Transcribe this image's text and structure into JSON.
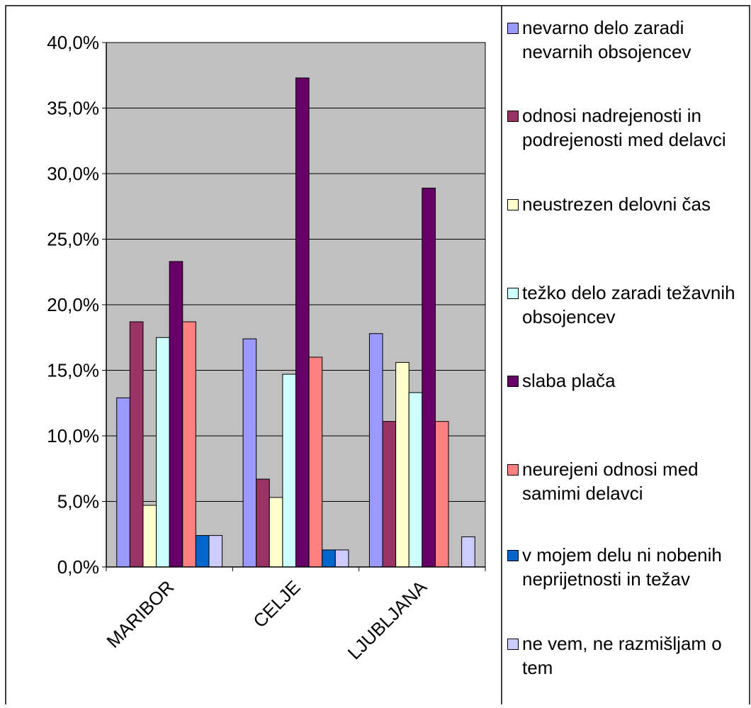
{
  "chart_data": {
    "type": "bar",
    "categories": [
      "MARIBOR",
      "CELJE",
      "LJUBLJANA"
    ],
    "series": [
      {
        "name": "nevarno delo zaradi nevarnih obsojencev",
        "color": "#9999ff",
        "values": [
          12.9,
          17.4,
          17.8
        ]
      },
      {
        "name": "odnosi nadrejenosti in podrejenosti med delavci",
        "color": "#993366",
        "values": [
          18.7,
          6.7,
          11.1
        ]
      },
      {
        "name": "neustrezen delovni čas",
        "color": "#ffffcc",
        "values": [
          4.7,
          5.3,
          15.6
        ]
      },
      {
        "name": "težko delo zaradi težavnih obsojencev",
        "color": "#ccffff",
        "values": [
          17.5,
          14.7,
          13.3
        ]
      },
      {
        "name": "slaba plača",
        "color": "#660066",
        "values": [
          23.3,
          37.3,
          28.9
        ]
      },
      {
        "name": "neurejeni odnosi med samimi delavci",
        "color": "#ff8080",
        "values": [
          18.7,
          16.0,
          11.1
        ]
      },
      {
        "name": "v mojem delu ni nobenih neprijetnosti in težav",
        "color": "#0066cc",
        "values": [
          2.4,
          1.3,
          0
        ]
      },
      {
        "name": "ne vem, ne razmišljam o tem",
        "color": "#ccccff",
        "values": [
          2.4,
          1.3,
          2.3
        ]
      }
    ],
    "ylim": [
      0,
      40
    ],
    "yticks": [
      {
        "value": 0,
        "label": "0,0%"
      },
      {
        "value": 5,
        "label": "5,0%"
      },
      {
        "value": 10,
        "label": "10,0%"
      },
      {
        "value": 15,
        "label": "15,0%"
      },
      {
        "value": 20,
        "label": "20,0%"
      },
      {
        "value": 25,
        "label": "25,0%"
      },
      {
        "value": 30,
        "label": "30,0%"
      },
      {
        "value": 35,
        "label": "35,0%"
      },
      {
        "value": 40,
        "label": "40,0%"
      }
    ],
    "grid": true,
    "plot_background": "#c0c0c0",
    "legend": "right"
  }
}
